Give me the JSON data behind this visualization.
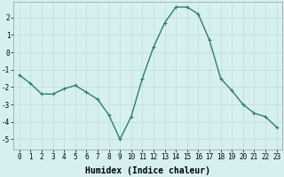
{
  "x": [
    0,
    1,
    2,
    3,
    4,
    5,
    6,
    7,
    8,
    9,
    10,
    11,
    12,
    13,
    14,
    15,
    16,
    17,
    18,
    19,
    20,
    21,
    22,
    23
  ],
  "y": [
    -1.3,
    -1.8,
    -2.4,
    -2.4,
    -2.1,
    -1.9,
    -2.3,
    -2.7,
    -3.6,
    -5.0,
    -3.7,
    -1.5,
    0.3,
    1.7,
    2.6,
    2.6,
    2.2,
    0.7,
    -1.5,
    -2.2,
    -3.0,
    -3.5,
    -3.7,
    -4.3
  ],
  "line_color": "#2e7d6e",
  "marker": "+",
  "marker_size": 3,
  "background_color": "#d6f0f0",
  "grid_color": "#c8dede",
  "xlabel": "Humidex (Indice chaleur)",
  "xlabel_fontsize": 7,
  "yticks": [
    -5,
    -4,
    -3,
    -2,
    -1,
    0,
    1,
    2
  ],
  "xticks": [
    0,
    1,
    2,
    3,
    4,
    5,
    6,
    7,
    8,
    9,
    10,
    11,
    12,
    13,
    14,
    15,
    16,
    17,
    18,
    19,
    20,
    21,
    22,
    23
  ],
  "ylim": [
    -5.6,
    2.9
  ],
  "xlim": [
    -0.5,
    23.5
  ],
  "tick_fontsize": 5.5,
  "line_width": 1.0
}
